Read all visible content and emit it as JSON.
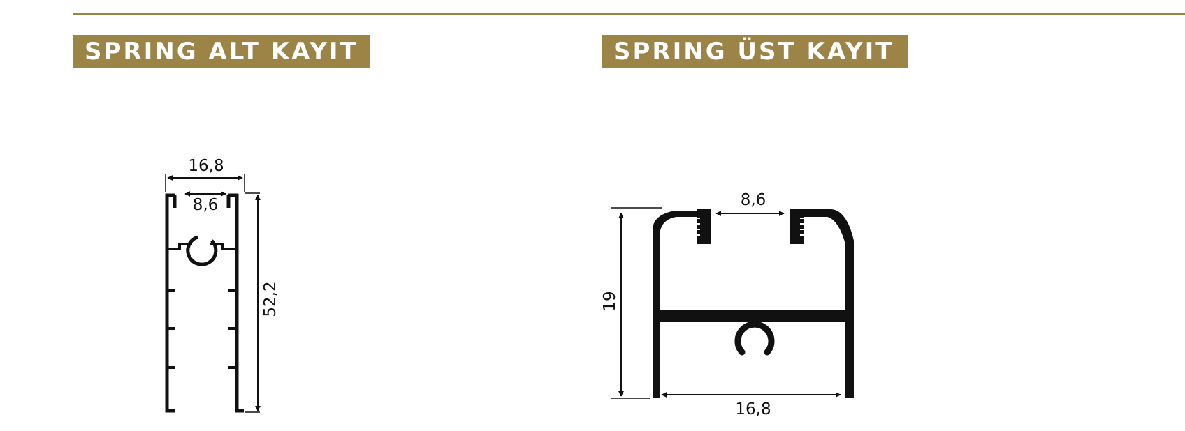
{
  "sections": [
    {
      "title": "SPRING ALT KAYIT",
      "dimensions": {
        "outer_width": "16,8",
        "inner_opening": "8,6",
        "height": "52,2"
      }
    },
    {
      "title": "SPRING ÜST KAYIT",
      "dimensions": {
        "inner_opening": "8,6",
        "height": "19",
        "outer_width": "16,8"
      }
    }
  ],
  "colors": {
    "accent": "#9c8447",
    "line": "#111111",
    "badge_text": "#ffffff"
  }
}
